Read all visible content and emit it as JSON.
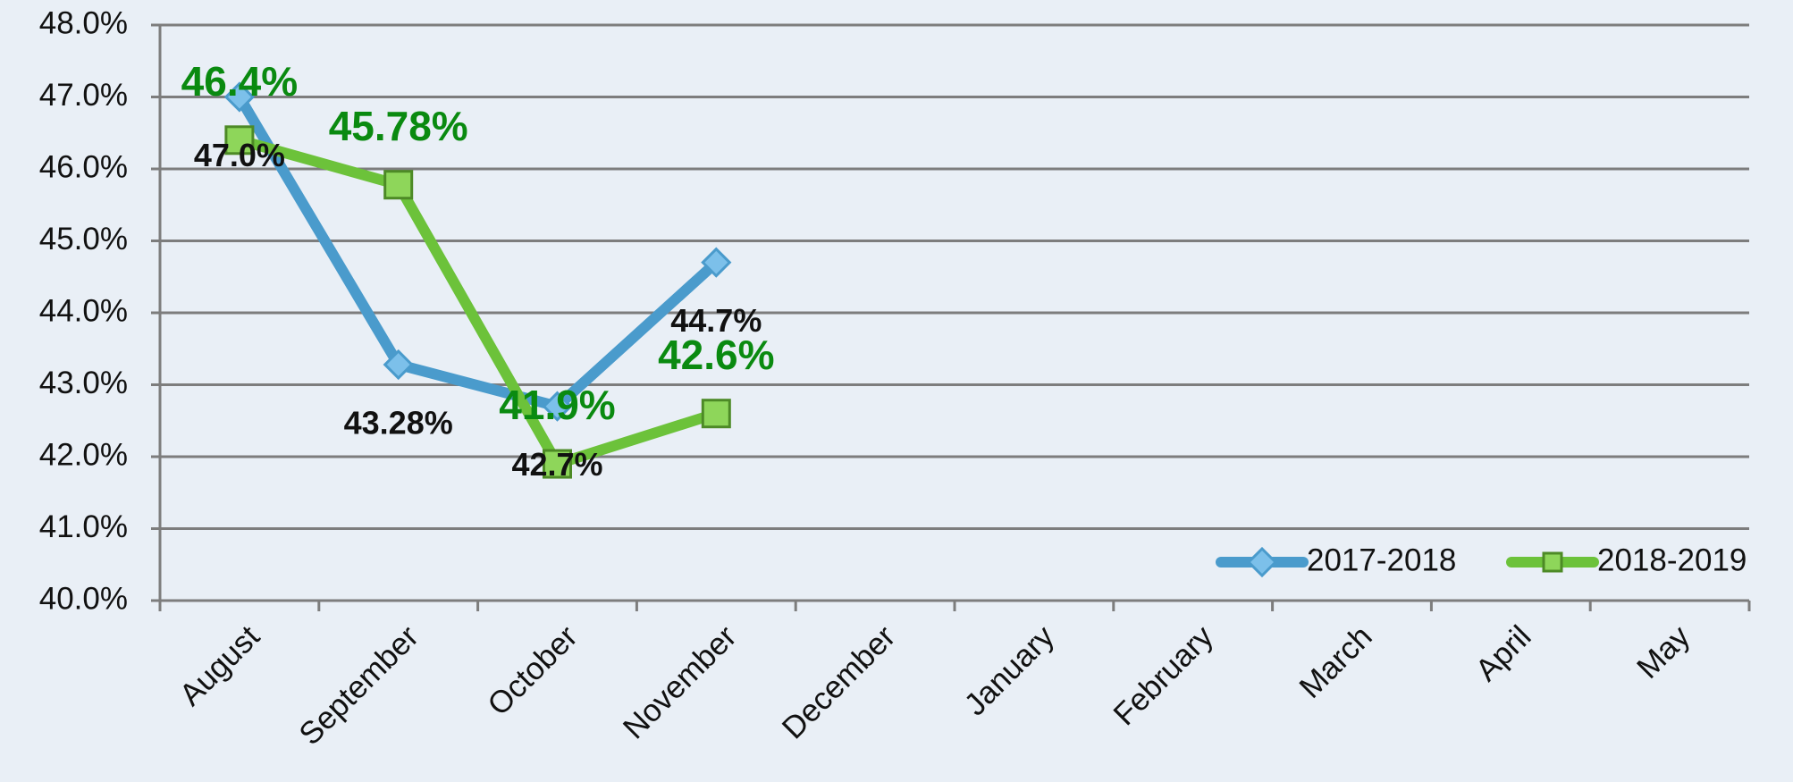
{
  "chart_data": {
    "type": "line",
    "categories": [
      "August",
      "September",
      "October",
      "November",
      "December",
      "January",
      "February",
      "March",
      "April",
      "May"
    ],
    "series": [
      {
        "name": "2017-2018",
        "color": "#4a9bcc",
        "marker": "diamond",
        "label_color": "#111111",
        "values": [
          47.0,
          43.28,
          42.7,
          44.7,
          null,
          null,
          null,
          null,
          null,
          null
        ],
        "value_labels": [
          "47.0%",
          "43.28%",
          "42.7%",
          "44.7%",
          null,
          null,
          null,
          null,
          null,
          null
        ]
      },
      {
        "name": "2018-2019",
        "color": "#6cc23a",
        "marker": "square",
        "label_color": "#0a8a10",
        "values": [
          46.4,
          45.78,
          41.9,
          42.6,
          null,
          null,
          null,
          null,
          null,
          null
        ],
        "value_labels": [
          "46.4%",
          "45.78%",
          "41.9%",
          "42.6%",
          null,
          null,
          null,
          null,
          null,
          null
        ]
      }
    ],
    "ylim": [
      40,
      48
    ],
    "yticks": [
      {
        "value": 40,
        "label": "40.0%"
      },
      {
        "value": 41,
        "label": "41.0%"
      },
      {
        "value": 42,
        "label": "42.0%"
      },
      {
        "value": 43,
        "label": "43.0%"
      },
      {
        "value": 44,
        "label": "44.0%"
      },
      {
        "value": 45,
        "label": "45.0%"
      },
      {
        "value": 46,
        "label": "46.0%"
      },
      {
        "value": 47,
        "label": "47.0%"
      },
      {
        "value": 48,
        "label": "48.0%"
      }
    ],
    "grid": true,
    "legend": "bottom-right"
  }
}
